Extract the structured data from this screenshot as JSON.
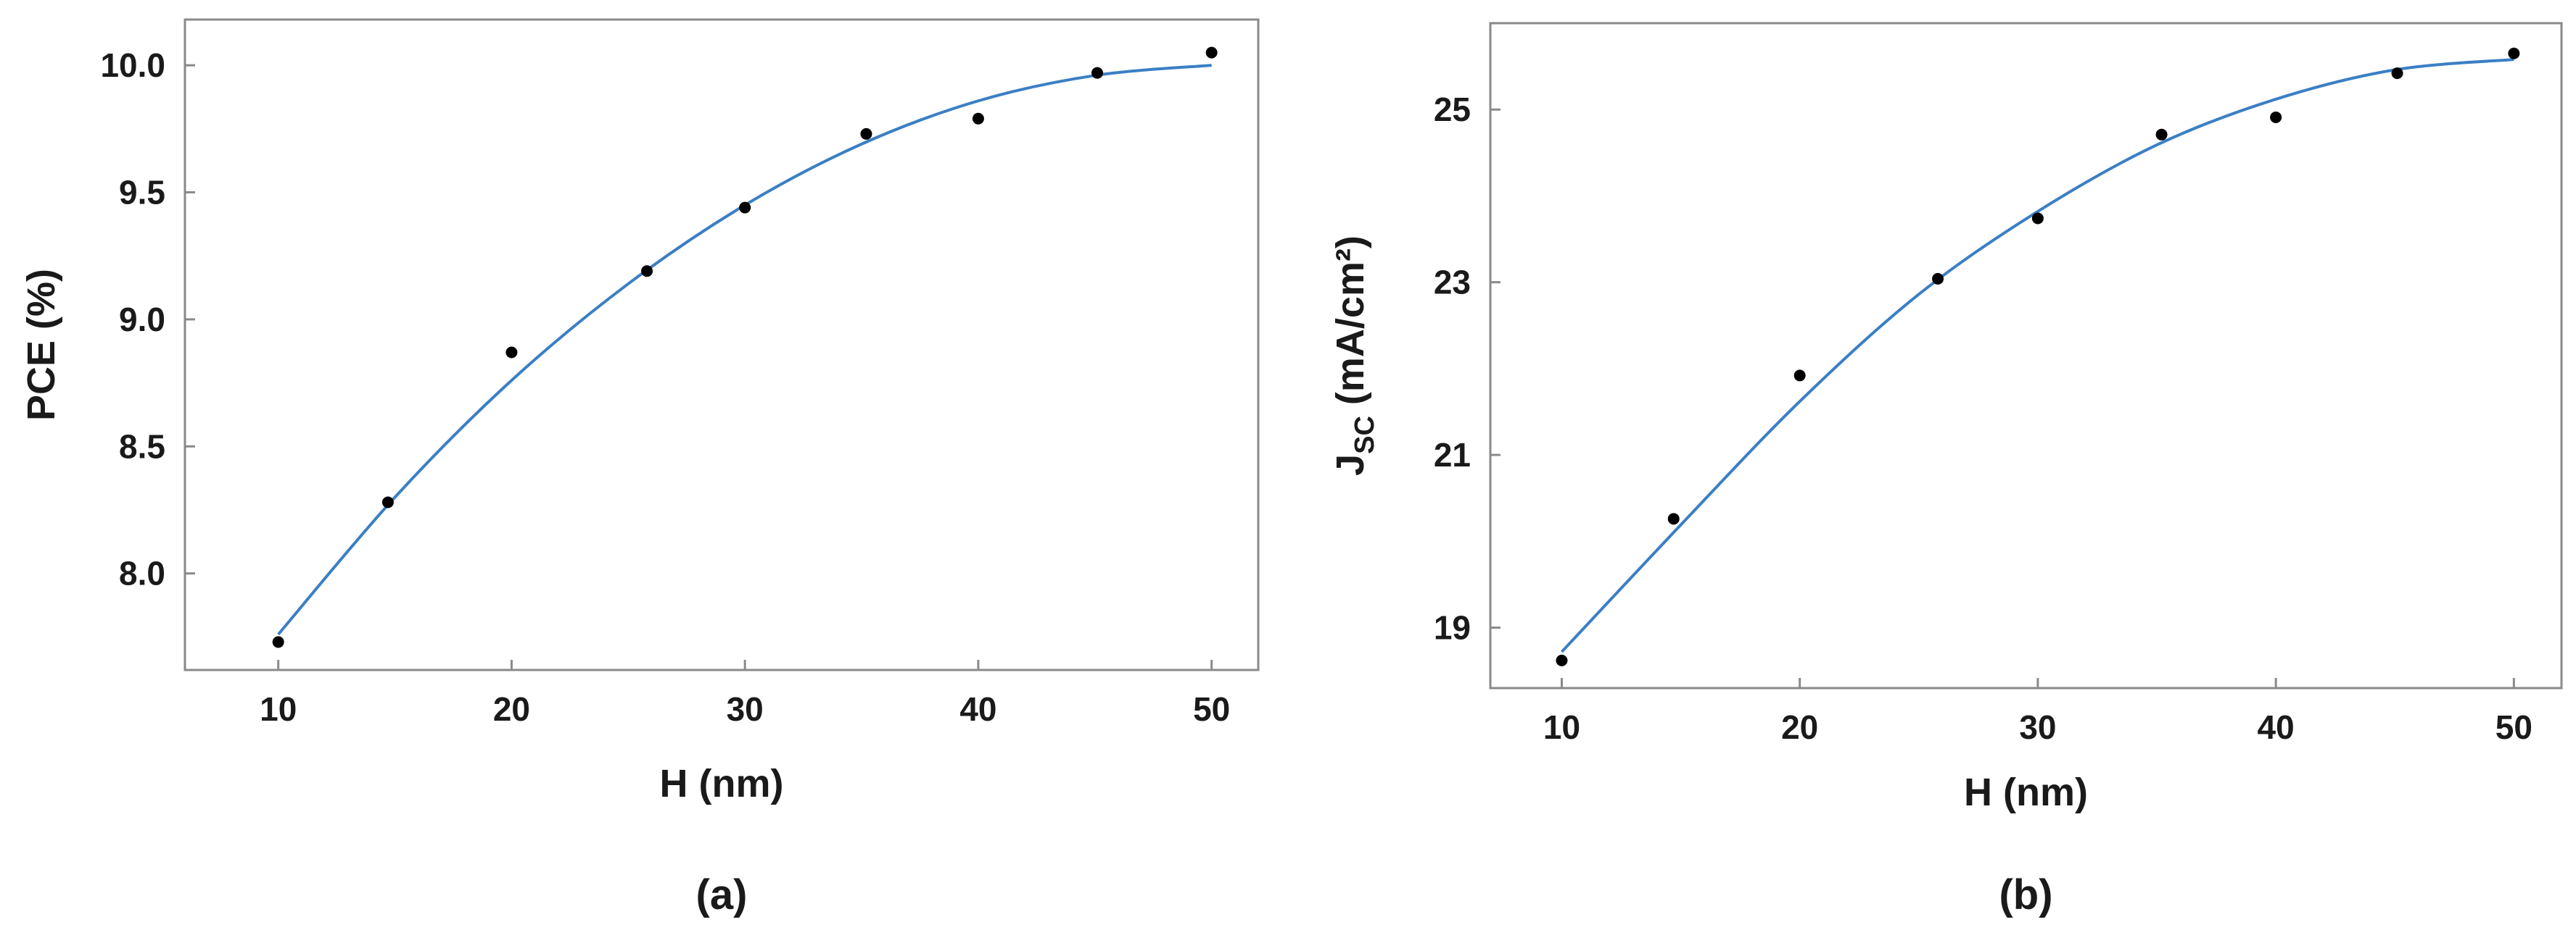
{
  "chart_data": [
    {
      "type": "scatter",
      "panel_label": "(a)",
      "xlabel": "H (nm)",
      "ylabel": "PCE (%)",
      "xlim": [
        6,
        52
      ],
      "ylim": [
        7.62,
        10.18
      ],
      "xticks": [
        10,
        20,
        30,
        40,
        50
      ],
      "xtick_labels": [
        "10",
        "20",
        "30",
        "40",
        "50"
      ],
      "yticks": [
        8.0,
        8.5,
        9.0,
        9.5,
        10.0
      ],
      "ytick_labels": [
        "8.0",
        "8.5",
        "9.0",
        "9.5",
        "10.0"
      ],
      "grid": false,
      "series": [
        {
          "kind": "points",
          "color": "#000000",
          "x": [
            10,
            14.7,
            20,
            25.8,
            30,
            35.2,
            40,
            45.1,
            50
          ],
          "y": [
            7.73,
            8.28,
            8.87,
            9.19,
            9.44,
            9.73,
            9.79,
            9.97,
            10.05
          ]
        },
        {
          "kind": "fit-line",
          "color": "#3b7fc4",
          "x": [
            10,
            15,
            20,
            25,
            30,
            35,
            40,
            45,
            50
          ],
          "y": [
            7.76,
            8.3,
            8.76,
            9.14,
            9.45,
            9.69,
            9.86,
            9.96,
            10.0
          ]
        }
      ]
    },
    {
      "type": "scatter",
      "panel_label": "(b)",
      "xlabel": "H (nm)",
      "ylabel_main": "J",
      "ylabel_sub": "SC",
      "ylabel_units": " (mA/cm²)",
      "xlim": [
        7,
        52
      ],
      "ylim": [
        18.3,
        26.0
      ],
      "xticks": [
        10,
        20,
        30,
        40,
        50
      ],
      "xtick_labels": [
        "10",
        "20",
        "30",
        "40",
        "50"
      ],
      "yticks": [
        19,
        21,
        23,
        25
      ],
      "ytick_labels": [
        "19",
        "21",
        "23",
        "25"
      ],
      "grid": false,
      "series": [
        {
          "kind": "points",
          "color": "#000000",
          "x": [
            10,
            14.7,
            20,
            25.8,
            30,
            35.2,
            40,
            45.1,
            50
          ],
          "y": [
            18.62,
            20.26,
            21.92,
            23.04,
            23.74,
            24.71,
            24.91,
            25.42,
            25.65
          ]
        },
        {
          "kind": "fit-line",
          "color": "#3b7fc4",
          "x": [
            10,
            15,
            20,
            25,
            30,
            35,
            40,
            45,
            50
          ],
          "y": [
            18.72,
            20.19,
            21.62,
            22.86,
            23.82,
            24.59,
            25.12,
            25.46,
            25.58
          ]
        }
      ]
    }
  ]
}
